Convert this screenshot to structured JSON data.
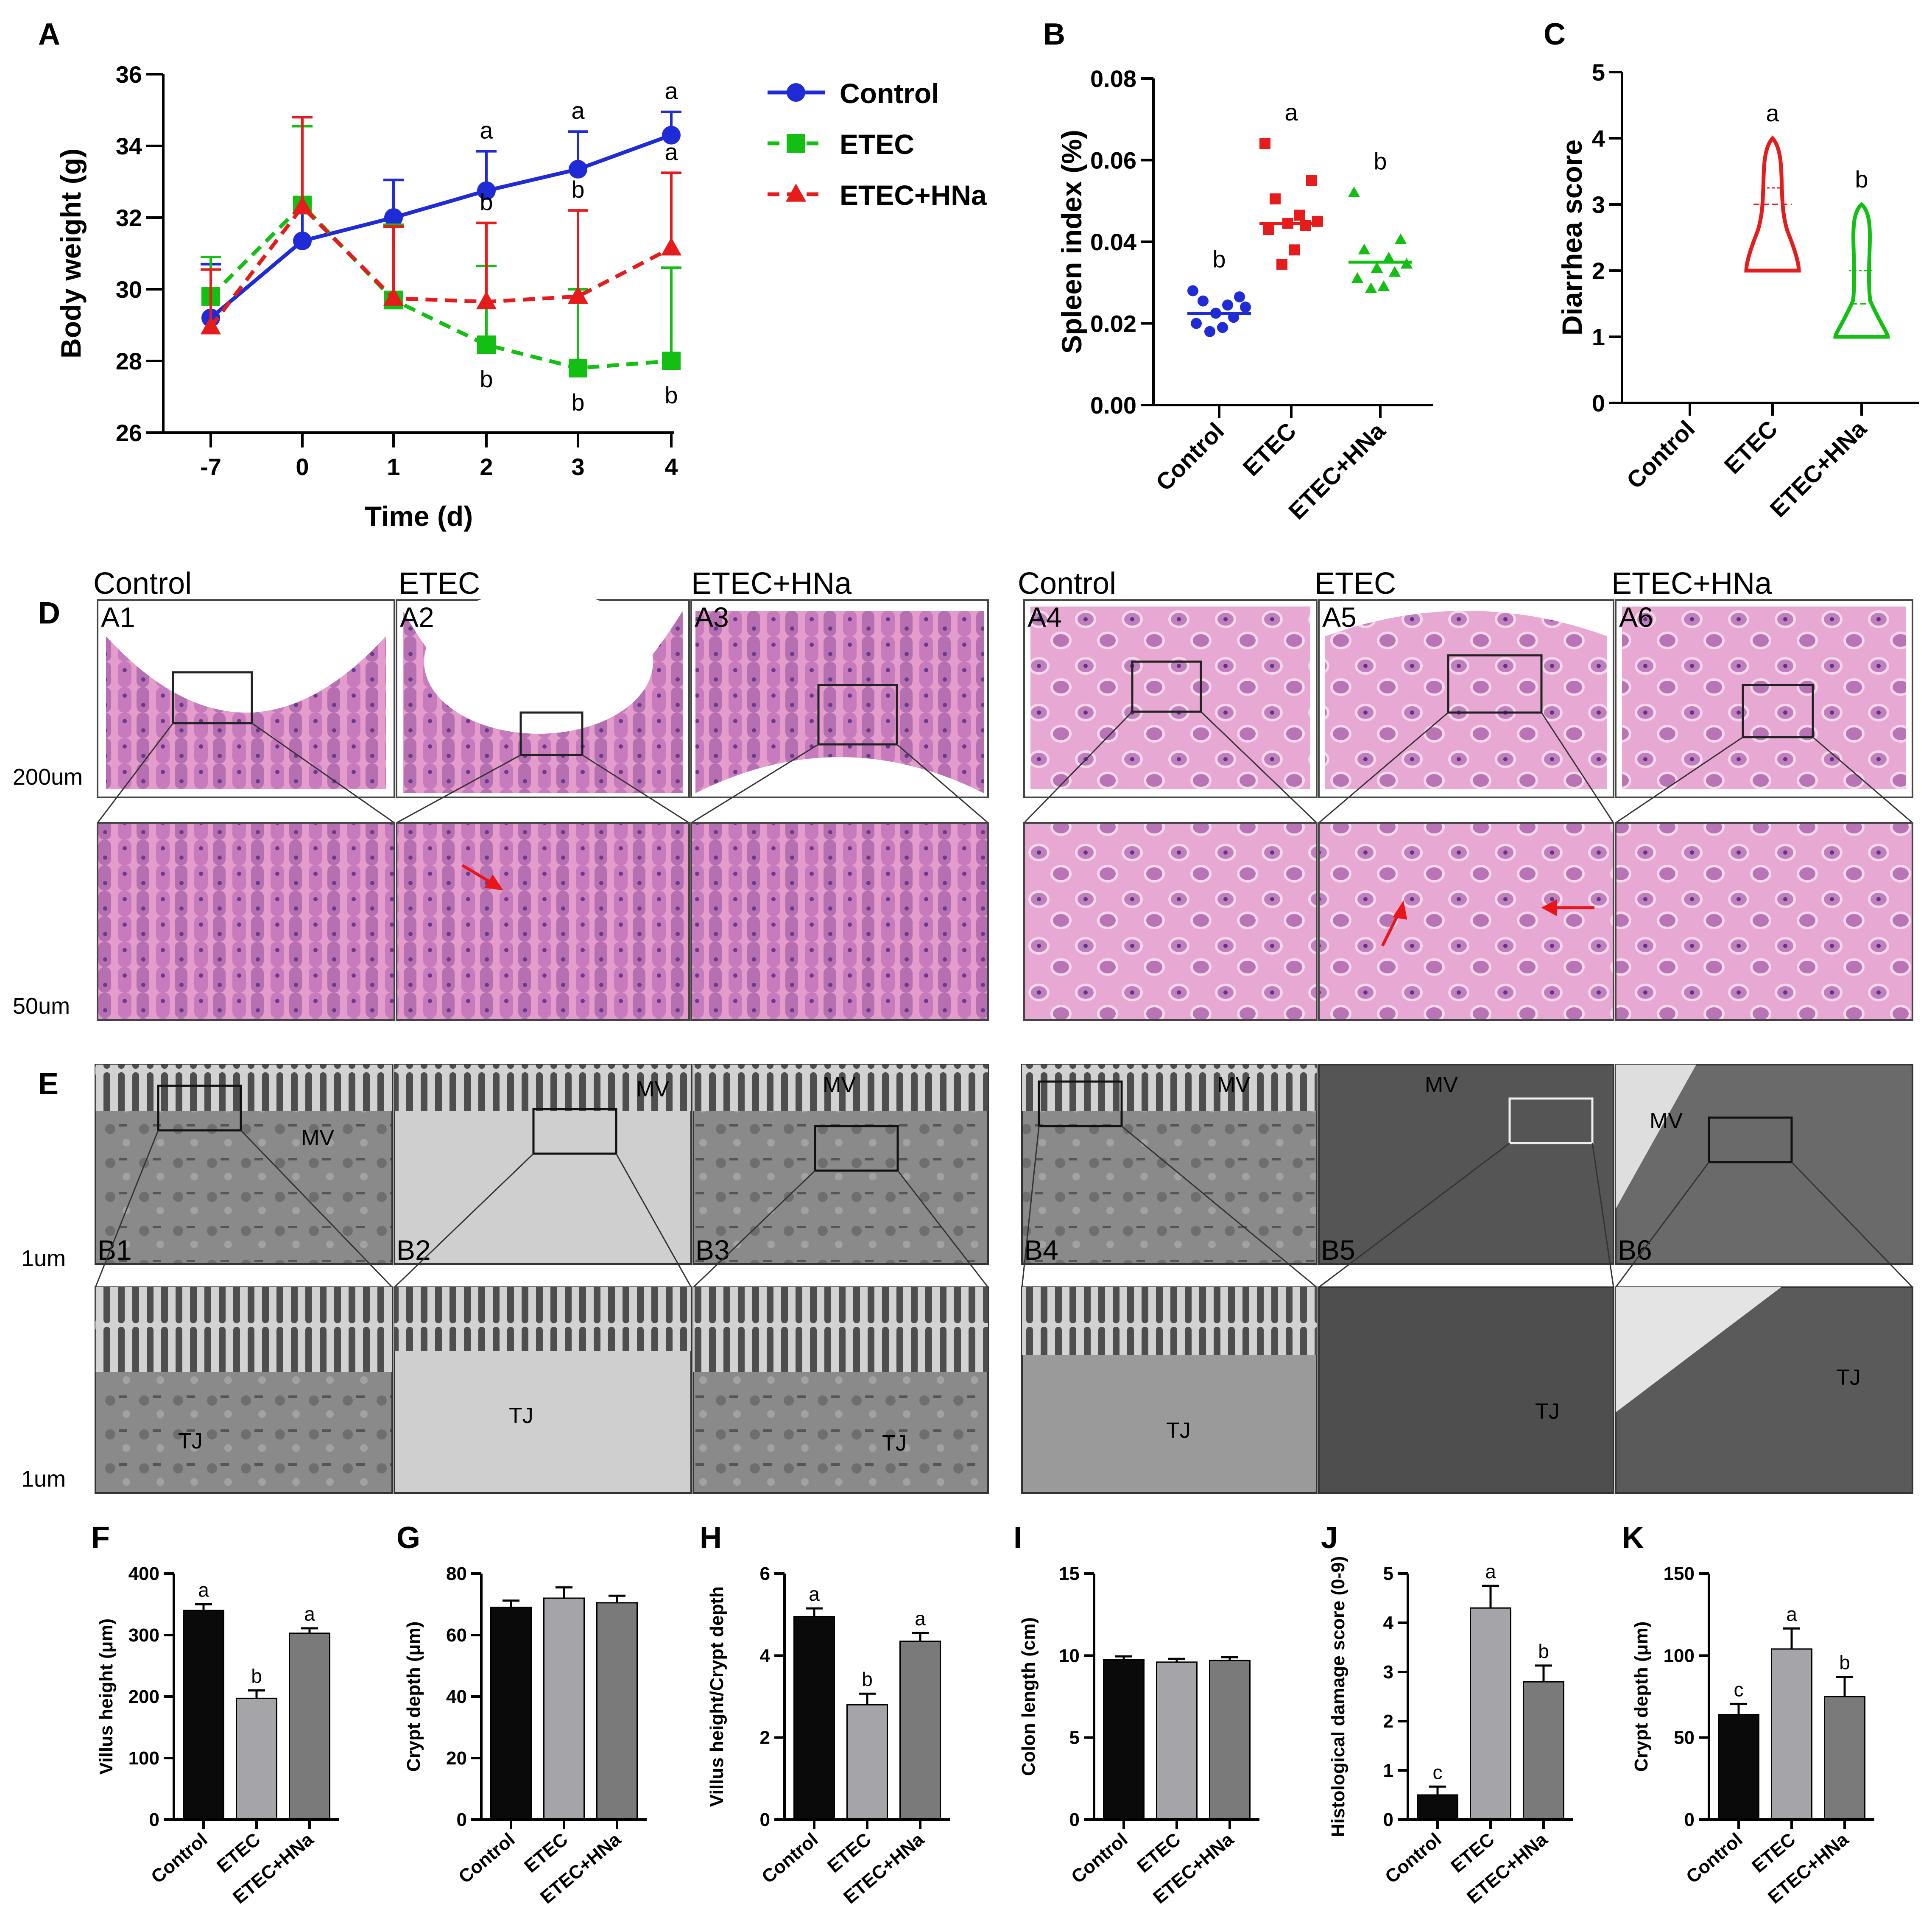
{
  "panel_letters": [
    "A",
    "B",
    "C",
    "D",
    "E",
    "F",
    "G",
    "H",
    "I",
    "J",
    "K"
  ],
  "colors": {
    "control": "#1f2bd6",
    "etec": "#12bf12",
    "etec_hna": "#e61c1c",
    "bar_control": "#0a0a0a",
    "bar_etec": "#a5a5a9",
    "bar_hna": "#7a7a7a"
  },
  "histology": {
    "group_labels": [
      "Control",
      "ETEC",
      "ETEC+HNa",
      "Control",
      "ETEC",
      "ETEC+HNa"
    ],
    "image_labels": [
      "A1",
      "A2",
      "A3",
      "A4",
      "A5",
      "A6"
    ],
    "scale_top": "200um",
    "scale_bottom": "50um"
  },
  "tem": {
    "image_labels": [
      "B1",
      "B2",
      "B3",
      "B4",
      "B5",
      "B6"
    ],
    "scale_top": "1um",
    "scale_bottom": "1um",
    "mv": "MV",
    "tj": "TJ"
  },
  "chart_data": [
    {
      "panel": "A",
      "type": "line",
      "xlabel": "Time (d)",
      "ylabel": "Body weight (g)",
      "x": [
        "-7",
        "0",
        "1",
        "2",
        "3",
        "4"
      ],
      "ylim": [
        26,
        36
      ],
      "yticks": [
        26,
        28,
        30,
        32,
        34,
        36
      ],
      "legend_position": "top-right",
      "series": [
        {
          "name": "Control",
          "color": "#1f2bd6",
          "marker": "circle",
          "dash": "solid",
          "values": [
            29.2,
            31.35,
            32.0,
            32.75,
            33.35,
            34.3
          ],
          "errors": [
            1.5,
            3.2,
            1.05,
            1.1,
            1.05,
            0.65
          ],
          "letters": [
            "",
            "",
            "",
            "a",
            "a",
            "a"
          ]
        },
        {
          "name": "ETEC",
          "color": "#12bf12",
          "marker": "square",
          "dash": "dashed",
          "values": [
            29.8,
            32.35,
            29.7,
            28.45,
            27.8,
            28.0
          ],
          "errors": [
            1.1,
            2.2,
            2.1,
            2.2,
            2.2,
            2.6
          ],
          "letters": [
            "",
            "",
            "",
            "b",
            "b",
            "b"
          ]
        },
        {
          "name": "ETEC+HNa",
          "color": "#e61c1c",
          "marker": "triangle",
          "dash": "dashed",
          "values": [
            28.95,
            32.3,
            29.75,
            29.65,
            29.8,
            31.15
          ],
          "errors": [
            1.6,
            2.5,
            2.0,
            2.2,
            2.4,
            2.1
          ],
          "letters": [
            "",
            "",
            "",
            "b",
            "b",
            "a"
          ]
        }
      ]
    },
    {
      "panel": "B",
      "type": "scatter",
      "ylabel": "Spleen index (%)",
      "ylim": [
        0,
        0.08
      ],
      "yticks": [
        "0.00",
        "0.02",
        "0.04",
        "0.06",
        "0.08"
      ],
      "categories": [
        "Control",
        "ETEC",
        "ETEC+HNa"
      ],
      "series": [
        {
          "name": "Control",
          "color": "#1f2bd6",
          "marker": "circle",
          "mean": 0.0225,
          "letter": "b",
          "values": [
            0.028,
            0.0265,
            0.0255,
            0.0245,
            0.024,
            0.0225,
            0.0215,
            0.02,
            0.019,
            0.018
          ]
        },
        {
          "name": "ETEC",
          "color": "#e61c1c",
          "marker": "square",
          "mean": 0.0445,
          "letter": "a",
          "values": [
            0.064,
            0.055,
            0.0505,
            0.0465,
            0.045,
            0.0445,
            0.044,
            0.043,
            0.038,
            0.0345
          ]
        },
        {
          "name": "ETEC+HNa",
          "color": "#12bf12",
          "marker": "triangle",
          "mean": 0.035,
          "letter": "b",
          "values": [
            0.052,
            0.0405,
            0.038,
            0.036,
            0.0345,
            0.0335,
            0.0325,
            0.031,
            0.029,
            0.0285
          ]
        }
      ]
    },
    {
      "panel": "C",
      "type": "violin",
      "ylabel": "Diarrhea score",
      "ylim": [
        0,
        5
      ],
      "yticks": [
        0,
        1,
        2,
        3,
        4,
        5
      ],
      "categories": [
        "Control",
        "ETEC",
        "ETEC+HNa"
      ],
      "series": [
        {
          "name": "Control",
          "values": []
        },
        {
          "name": "ETEC",
          "color": "#e61c1c",
          "min": 2,
          "max": 4,
          "median": 3,
          "q3": 3.25,
          "letter": "a"
        },
        {
          "name": "ETEC+HNa",
          "color": "#12bf12",
          "min": 1,
          "max": 3,
          "median": 1.5,
          "q3": 2,
          "letter": "b"
        }
      ]
    },
    {
      "panel": "F",
      "type": "bar",
      "ylabel": "Villus height (μm)",
      "ylim": [
        0,
        400
      ],
      "yticks": [
        0,
        100,
        200,
        300,
        400
      ],
      "categories": [
        "Control",
        "ETEC",
        "ETEC+HNa"
      ],
      "values": [
        340,
        197,
        303
      ],
      "errors": [
        10,
        13,
        8
      ],
      "letters": [
        "a",
        "b",
        "a"
      ]
    },
    {
      "panel": "G",
      "type": "bar",
      "ylabel": "Crypt depth (μm)",
      "ylim": [
        0,
        80
      ],
      "yticks": [
        0,
        20,
        40,
        60,
        80
      ],
      "categories": [
        "Control",
        "ETEC",
        "ETEC+HNa"
      ],
      "values": [
        69,
        72,
        70.5
      ],
      "errors": [
        2.2,
        3.5,
        2.3
      ],
      "letters": [
        "",
        "",
        ""
      ]
    },
    {
      "panel": "H",
      "type": "bar",
      "ylabel": "Villus height/Crypt depth",
      "ylim": [
        0,
        6
      ],
      "yticks": [
        0,
        2,
        4,
        6
      ],
      "categories": [
        "Control",
        "ETEC",
        "ETEC+HNa"
      ],
      "values": [
        4.95,
        2.8,
        4.35
      ],
      "errors": [
        0.2,
        0.27,
        0.2
      ],
      "letters": [
        "a",
        "b",
        "a"
      ]
    },
    {
      "panel": "I",
      "type": "bar",
      "ylabel": "Colon length (cm)",
      "ylim": [
        0,
        15
      ],
      "yticks": [
        0,
        5,
        10,
        15
      ],
      "categories": [
        "Control",
        "ETEC",
        "ETEC+HNa"
      ],
      "values": [
        9.75,
        9.6,
        9.7
      ],
      "errors": [
        0.2,
        0.2,
        0.2
      ],
      "letters": [
        "",
        "",
        ""
      ]
    },
    {
      "panel": "J",
      "type": "bar",
      "ylabel": "Histological damage score (0-9)",
      "ylim": [
        0,
        5
      ],
      "yticks": [
        0,
        1,
        2,
        3,
        4,
        5
      ],
      "categories": [
        "Control",
        "ETEC",
        "ETEC+HNa"
      ],
      "values": [
        0.5,
        4.3,
        2.8
      ],
      "errors": [
        0.17,
        0.45,
        0.33
      ],
      "letters": [
        "c",
        "a",
        "b"
      ]
    },
    {
      "panel": "K",
      "type": "bar",
      "ylabel": "Crypt depth (μm)",
      "ylim": [
        0,
        150
      ],
      "yticks": [
        0,
        50,
        100,
        150
      ],
      "categories": [
        "Control",
        "ETEC",
        "ETEC+HNa"
      ],
      "values": [
        64,
        104,
        75
      ],
      "errors": [
        6.5,
        12.5,
        12
      ],
      "letters": [
        "c",
        "a",
        "b"
      ]
    }
  ]
}
